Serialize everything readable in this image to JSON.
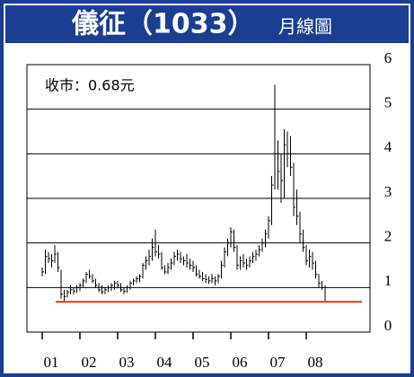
{
  "chart_data": {
    "type": "ohlc",
    "title": "儀征（1033）",
    "subtitle": "月線圖",
    "annotation": "收市：0.68元",
    "close_line": 0.68,
    "close_line_color": "#d9361f",
    "color": "#000000",
    "grid": true,
    "ylim": [
      0,
      6
    ],
    "yticks": [
      0,
      1,
      2,
      3,
      4,
      5,
      6
    ],
    "categories": [
      "01",
      null,
      null,
      null,
      null,
      null,
      null,
      null,
      null,
      null,
      null,
      null,
      "02",
      null,
      null,
      null,
      null,
      null,
      null,
      null,
      null,
      null,
      null,
      null,
      "03",
      null,
      null,
      null,
      null,
      null,
      null,
      null,
      null,
      null,
      null,
      null,
      "04",
      null,
      null,
      null,
      null,
      null,
      null,
      null,
      null,
      null,
      null,
      null,
      "05",
      null,
      null,
      null,
      null,
      null,
      null,
      null,
      null,
      null,
      null,
      null,
      "06",
      null,
      null,
      null,
      null,
      null,
      null,
      null,
      null,
      null,
      null,
      null,
      "07",
      null,
      null,
      null,
      null,
      null,
      null,
      null,
      null,
      null,
      null,
      null,
      "08",
      null,
      null,
      null,
      null,
      null,
      null
    ],
    "high": [
      1.45,
      1.85,
      1.8,
      1.75,
      1.95,
      1.8,
      1.4,
      0.95,
      0.95,
      1.05,
      1.0,
      1.05,
      1.1,
      1.2,
      1.35,
      1.4,
      1.3,
      1.2,
      1.1,
      1.05,
      1.0,
      1.05,
      1.1,
      1.15,
      1.15,
      1.1,
      1.0,
      1.05,
      1.15,
      1.2,
      1.25,
      1.3,
      1.55,
      1.7,
      1.85,
      2.1,
      2.3,
      1.95,
      1.8,
      1.5,
      1.55,
      1.65,
      1.8,
      1.85,
      1.8,
      1.7,
      1.75,
      1.65,
      1.6,
      1.5,
      1.4,
      1.35,
      1.3,
      1.25,
      1.3,
      1.25,
      1.3,
      1.6,
      1.9,
      2.1,
      2.35,
      2.3,
      1.95,
      1.7,
      1.75,
      1.65,
      1.7,
      1.8,
      1.85,
      1.95,
      2.1,
      2.3,
      2.6,
      3.5,
      5.55,
      4.3,
      4.0,
      4.55,
      4.5,
      4.4,
      3.8,
      3.2,
      2.7,
      2.3,
      1.95,
      1.85,
      1.8,
      1.6,
      1.3,
      1.15,
      1.05
    ],
    "low": [
      1.25,
      1.3,
      1.55,
      1.45,
      1.55,
      1.35,
      0.75,
      0.7,
      0.78,
      0.85,
      0.85,
      0.88,
      0.92,
      1.0,
      1.1,
      1.2,
      1.1,
      1.0,
      0.9,
      0.85,
      0.85,
      0.9,
      0.92,
      0.95,
      0.98,
      0.9,
      0.85,
      0.88,
      0.95,
      1.05,
      1.1,
      1.12,
      1.2,
      1.4,
      1.5,
      1.6,
      1.7,
      1.65,
      1.4,
      1.3,
      1.3,
      1.4,
      1.5,
      1.6,
      1.55,
      1.5,
      1.45,
      1.4,
      1.35,
      1.25,
      1.2,
      1.15,
      1.1,
      1.08,
      1.1,
      1.05,
      1.1,
      1.2,
      1.45,
      1.7,
      1.9,
      1.8,
      1.4,
      1.4,
      1.45,
      1.4,
      1.45,
      1.55,
      1.6,
      1.7,
      1.8,
      1.9,
      2.1,
      2.4,
      3.2,
      3.2,
      2.9,
      3.0,
      3.7,
      3.5,
      2.6,
      2.4,
      2.0,
      1.8,
      1.5,
      1.45,
      1.4,
      1.2,
      1.0,
      0.95,
      0.7
    ],
    "close": [
      1.35,
      1.7,
      1.65,
      1.6,
      1.75,
      1.45,
      0.85,
      0.8,
      0.9,
      0.95,
      0.92,
      1.0,
      1.05,
      1.15,
      1.3,
      1.25,
      1.15,
      1.05,
      0.95,
      0.9,
      0.95,
      1.0,
      1.05,
      1.1,
      1.05,
      0.95,
      0.92,
      1.0,
      1.1,
      1.15,
      1.2,
      1.25,
      1.5,
      1.6,
      1.7,
      1.9,
      1.8,
      1.75,
      1.45,
      1.35,
      1.45,
      1.55,
      1.7,
      1.75,
      1.65,
      1.6,
      1.55,
      1.5,
      1.45,
      1.3,
      1.25,
      1.2,
      1.18,
      1.15,
      1.2,
      1.15,
      1.25,
      1.5,
      1.8,
      2.0,
      2.25,
      1.9,
      1.5,
      1.6,
      1.55,
      1.5,
      1.6,
      1.7,
      1.75,
      1.85,
      2.0,
      2.2,
      2.5,
      3.3,
      4.0,
      3.6,
      3.4,
      4.2,
      4.0,
      3.7,
      2.8,
      2.6,
      2.2,
      1.9,
      1.6,
      1.7,
      1.55,
      1.3,
      1.1,
      1.0,
      0.68
    ]
  }
}
